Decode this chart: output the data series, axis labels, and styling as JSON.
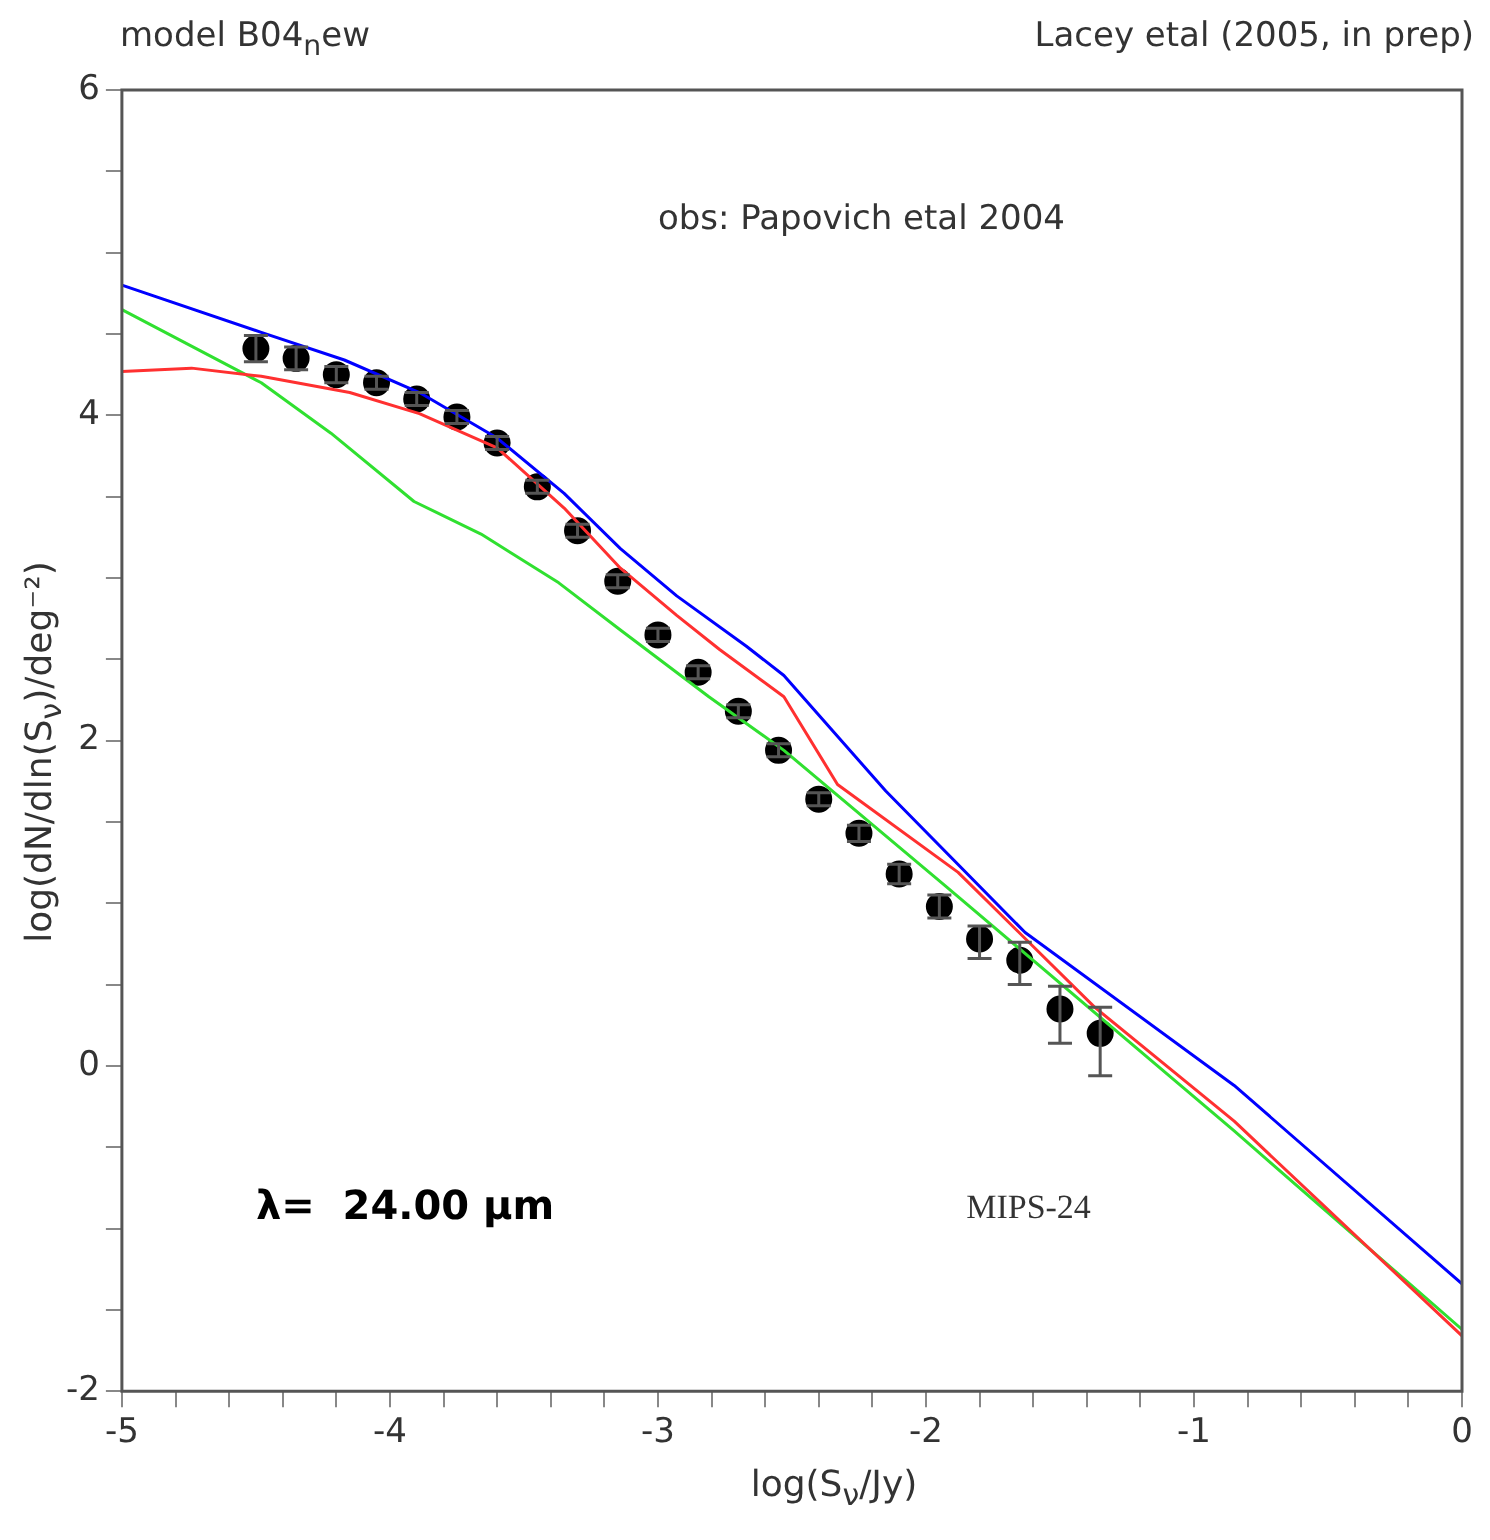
{
  "chart_data": {
    "type": "line",
    "title": "model B04$_{n}$ew",
    "subtitle": "Lacey etal (2005, in prep)",
    "xlabel": "log(S$_{ν}$/Jy)",
    "ylabel": "log(dN/dln(S$_{ν}$)/deg⁻²)",
    "annotations": [
      "obs: Papovich etal 2004",
      "λ=  24.00 μm",
      "MIPS-24"
    ],
    "xlim": [
      -5,
      0
    ],
    "xticks": [
      -5,
      {
        "value": -4.8,
        "label": null
      },
      {
        "value": -4.6,
        "label": null
      },
      {
        "value": -4.4,
        "label": null
      },
      {
        "value": -4.2,
        "label": null
      },
      -4,
      {
        "value": -3.8,
        "label": null
      },
      {
        "value": -3.6,
        "label": null
      },
      {
        "value": -3.4,
        "label": null
      },
      {
        "value": -3.2,
        "label": null
      },
      -3,
      {
        "value": -2.8,
        "label": null
      },
      {
        "value": -2.6,
        "label": null
      },
      {
        "value": -2.4,
        "label": null
      },
      {
        "value": -2.2,
        "label": null
      },
      -2,
      {
        "value": -1.8,
        "label": null
      },
      {
        "value": -1.6,
        "label": null
      },
      {
        "value": -1.4,
        "label": null
      },
      {
        "value": -1.2,
        "label": null
      },
      -1,
      {
        "value": -0.8,
        "label": null
      },
      {
        "value": -0.6,
        "label": null
      },
      {
        "value": -0.4,
        "label": null
      },
      {
        "value": -0.2,
        "label": null
      },
      0
    ],
    "ylim": [
      -2,
      6
    ],
    "yticks": [
      -2,
      {
        "value": -1.5,
        "label": null
      },
      {
        "value": -1,
        "label": null
      },
      {
        "value": -0.5,
        "label": null
      },
      0,
      {
        "value": 0.5,
        "label": null
      },
      {
        "value": 1,
        "label": null
      },
      {
        "value": 1.5,
        "label": null
      },
      2,
      {
        "value": 2.5,
        "label": null
      },
      {
        "value": 3,
        "label": null
      },
      {
        "value": 3.5,
        "label": null
      },
      4,
      {
        "value": 4.5,
        "label": null
      },
      {
        "value": 5,
        "label": null
      },
      {
        "value": 5.5,
        "label": null
      },
      6
    ],
    "grid": false,
    "legend": false,
    "marker": "none",
    "line_style": "solid",
    "series": [
      {
        "color": "#0000ff",
        "x": [
          -5,
          -4.48,
          -4.17,
          -3.89,
          -3.6,
          -3.35,
          -3.14,
          -2.93,
          -2.67,
          -2.53,
          -2.15,
          -1.63,
          -0.85,
          0
        ],
        "values": [
          4.8,
          4.51,
          4.34,
          4.14,
          3.86,
          3.52,
          3.18,
          2.89,
          2.58,
          2.4,
          1.69,
          0.82,
          -0.12,
          -1.34
        ]
      },
      {
        "color": "#ff3030",
        "x": [
          -5,
          -4.74,
          -4.48,
          -4.15,
          -3.89,
          -3.6,
          -3.35,
          -3.14,
          -2.93,
          -2.77,
          -2.53,
          -2.33,
          -1.88,
          -1.37,
          -0.85,
          0
        ],
        "values": [
          4.27,
          4.29,
          4.24,
          4.14,
          4.01,
          3.8,
          3.43,
          3.06,
          2.77,
          2.56,
          2.27,
          1.73,
          1.19,
          0.36,
          -0.34,
          -1.66
        ]
      },
      {
        "color": "#30e030",
        "x": [
          -5,
          -4.48,
          -4.22,
          -3.91,
          -3.66,
          -3.37,
          -3.14,
          -2.81,
          -2.53,
          -1.93,
          -0.85,
          0
        ],
        "values": [
          4.65,
          4.2,
          3.89,
          3.47,
          3.27,
          2.97,
          2.68,
          2.27,
          1.94,
          1.11,
          -0.4,
          -1.62
        ]
      },
      {
        "type": "scatter",
        "marker": "circle",
        "color": "#000000",
        "x": [
          -4.5,
          -4.35,
          -4.2,
          -4.05,
          -3.9,
          -3.75,
          -3.6,
          -3.45,
          -3.3,
          -3.15,
          -3.0,
          -2.85,
          -2.7,
          -2.55,
          -2.4,
          -2.25,
          -2.1,
          -1.95,
          -1.8,
          -1.65,
          -1.5,
          -1.35
        ],
        "values": [
          4.41,
          4.35,
          4.25,
          4.2,
          4.1,
          3.99,
          3.83,
          3.56,
          3.29,
          2.98,
          2.65,
          2.42,
          2.18,
          1.94,
          1.64,
          1.43,
          1.18,
          0.98,
          0.78,
          0.65,
          0.35,
          0.2
        ],
        "errors": [
          0.08,
          0.07,
          0.05,
          0.04,
          0.04,
          0.04,
          0.04,
          0.04,
          0.04,
          0.04,
          0.04,
          0.04,
          0.04,
          0.04,
          0.04,
          0.05,
          0.06,
          0.07,
          [
            0.66,
            0.86
          ],
          [
            0.5,
            0.76
          ],
          [
            0.14,
            0.49
          ],
          [
            -0.06,
            0.36
          ]
        ]
      }
    ]
  }
}
